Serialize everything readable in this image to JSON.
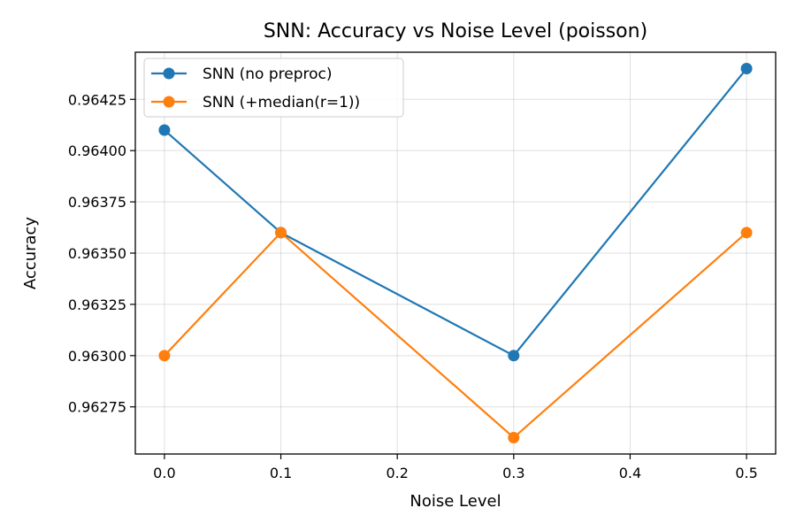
{
  "chart_data": {
    "type": "line",
    "title": "SNN: Accuracy vs Noise Level (poisson)",
    "xlabel": "Noise Level",
    "ylabel": "Accuracy",
    "xlim": [
      -0.025,
      0.525
    ],
    "ylim": [
      0.96252,
      0.96448
    ],
    "x_ticks": [
      0.0,
      0.1,
      0.2,
      0.3,
      0.4,
      0.5
    ],
    "x_tick_labels": [
      "0.0",
      "0.1",
      "0.2",
      "0.3",
      "0.4",
      "0.5"
    ],
    "y_ticks": [
      0.96275,
      0.963,
      0.96325,
      0.9635,
      0.96375,
      0.964,
      0.96425
    ],
    "y_tick_labels": [
      "0.96275",
      "0.96300",
      "0.96325",
      "0.96350",
      "0.96375",
      "0.96400",
      "0.96425"
    ],
    "grid": true,
    "legend_position": "top-left",
    "x": [
      0.0,
      0.1,
      0.3,
      0.5
    ],
    "series": [
      {
        "name": "SNN (no preproc)",
        "color": "#1f77b4",
        "values": [
          0.9641,
          0.9636,
          0.963,
          0.9644
        ]
      },
      {
        "name": "SNN (+median(r=1))",
        "color": "#ff7f0e",
        "values": [
          0.963,
          0.9636,
          0.9626,
          0.9636
        ]
      }
    ]
  }
}
